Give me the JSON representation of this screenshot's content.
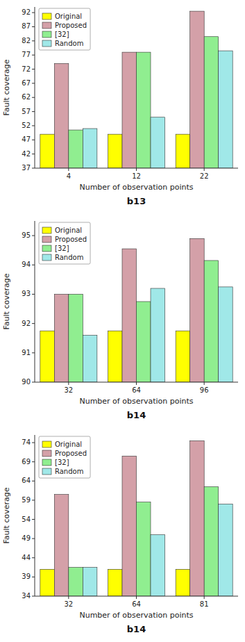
{
  "chart_data": [
    {
      "type": "bar",
      "title": "b13",
      "xlabel": "Number of observation points",
      "ylabel": "Fault coverage",
      "categories": [
        "4",
        "12",
        "22"
      ],
      "series": [
        {
          "name": "Original",
          "color": "#ffff00",
          "values": [
            49.0,
            49.0,
            49.0
          ]
        },
        {
          "name": "Proposed",
          "color": "#d4a0a8",
          "values": [
            74.0,
            78.0,
            92.5
          ]
        },
        {
          "name": "[32]",
          "color": "#90ee90",
          "values": [
            50.5,
            78.0,
            83.5
          ]
        },
        {
          "name": "Random",
          "color": "#a0e8e8",
          "values": [
            51.0,
            55.0,
            78.5
          ]
        }
      ],
      "ylim": [
        37,
        94
      ],
      "yticks": [
        37,
        42,
        47,
        52,
        57,
        62,
        67,
        72,
        77,
        82,
        87,
        92
      ],
      "legend": "upper left",
      "grid": false
    },
    {
      "type": "bar",
      "title": "b14",
      "xlabel": "Number of observation points",
      "ylabel": "Fault coverage",
      "categories": [
        "32",
        "64",
        "96"
      ],
      "series": [
        {
          "name": "Original",
          "color": "#ffff00",
          "values": [
            91.75,
            91.75,
            91.75
          ]
        },
        {
          "name": "Proposed",
          "color": "#d4a0a8",
          "values": [
            93.0,
            94.55,
            94.9
          ]
        },
        {
          "name": "[32]",
          "color": "#90ee90",
          "values": [
            93.0,
            92.75,
            94.15
          ]
        },
        {
          "name": "Random",
          "color": "#a0e8e8",
          "values": [
            91.6,
            93.2,
            93.25
          ]
        }
      ],
      "ylim": [
        90,
        95.5
      ],
      "yticks": [
        90,
        91,
        92,
        93,
        94,
        95
      ],
      "legend": "upper left",
      "grid": false
    },
    {
      "type": "bar",
      "title": "b14",
      "xlabel": "Number of observation points",
      "ylabel": "Fault coverage",
      "categories": [
        "32",
        "64",
        "81"
      ],
      "series": [
        {
          "name": "Original",
          "color": "#ffff00",
          "values": [
            41.0,
            41.0,
            41.0
          ]
        },
        {
          "name": "Proposed",
          "color": "#d4a0a8",
          "values": [
            60.5,
            70.5,
            74.5
          ]
        },
        {
          "name": "[32]",
          "color": "#90ee90",
          "values": [
            41.5,
            58.5,
            62.5
          ]
        },
        {
          "name": "Random",
          "color": "#a0e8e8",
          "values": [
            41.5,
            50.0,
            58.0
          ]
        }
      ],
      "ylim": [
        34,
        76
      ],
      "yticks": [
        34,
        39,
        44,
        49,
        54,
        59,
        64,
        69,
        74
      ],
      "legend": "upper left",
      "grid": false
    }
  ]
}
